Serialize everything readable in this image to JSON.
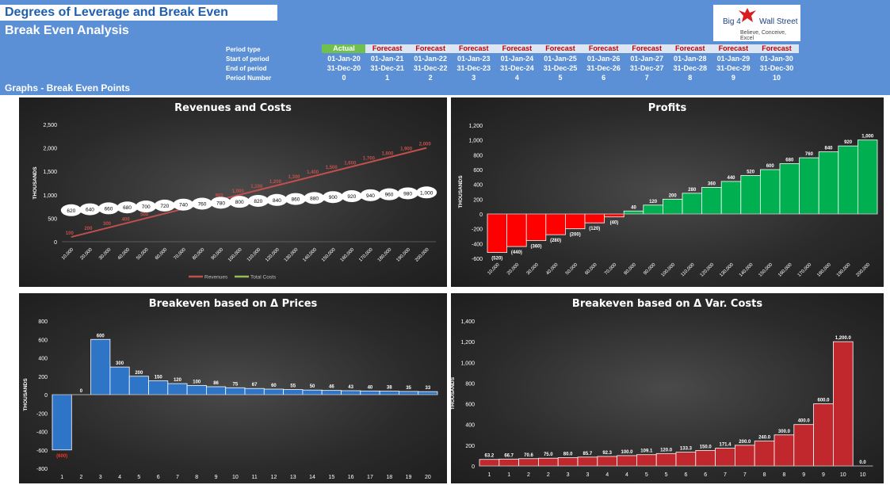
{
  "header": {
    "title": "Degrees of Leverage and Break Even",
    "subtitle": "Break Even Analysis",
    "section": "Graphs - Break Even Points",
    "logo_line1": "Big 4",
    "logo_line2": "Wall Street",
    "logo_tagline": "Believe, Conceive, Excel",
    "logo_icon": "eagle-icon"
  },
  "periods": {
    "labels": [
      "Period type",
      "Start of period",
      "End of period",
      "Period Number"
    ],
    "types": [
      "Actual",
      "Forecast",
      "Forecast",
      "Forecast",
      "Forecast",
      "Forecast",
      "Forecast",
      "Forecast",
      "Forecast",
      "Forecast",
      "Forecast"
    ],
    "starts": [
      "01-Jan-20",
      "01-Jan-21",
      "01-Jan-22",
      "01-Jan-23",
      "01-Jan-24",
      "01-Jan-25",
      "01-Jan-26",
      "01-Jan-27",
      "01-Jan-28",
      "01-Jan-29",
      "01-Jan-30"
    ],
    "ends": [
      "31-Dec-20",
      "31-Dec-21",
      "31-Dec-22",
      "31-Dec-23",
      "31-Dec-24",
      "31-Dec-25",
      "31-Dec-26",
      "31-Dec-27",
      "31-Dec-28",
      "31-Dec-29",
      "31-Dec-30"
    ],
    "numbers": [
      "0",
      "1",
      "2",
      "3",
      "4",
      "5",
      "6",
      "7",
      "8",
      "9",
      "10"
    ]
  },
  "colors": {
    "header_blue": "#5b8fd6",
    "actual_green": "#70c050",
    "revenue_red": "#c0504d",
    "cost_green": "#9bbb59",
    "loss_red": "#ff0000",
    "profit_green": "#00b050",
    "bar_blue": "#2e75c8",
    "bar_red": "#c0282d"
  },
  "chart_data": [
    {
      "type": "line",
      "title": "Revenues and Costs",
      "ylabel": "THOUSANDS",
      "ylim": [
        0,
        2500
      ],
      "yticks": [
        "0",
        "500",
        "1,000",
        "1,500",
        "2,000",
        "2,500"
      ],
      "categories": [
        "10,000",
        "20,000",
        "30,000",
        "40,000",
        "50,000",
        "60,000",
        "70,000",
        "80,000",
        "90,000",
        "100,000",
        "110,000",
        "120,000",
        "130,000",
        "140,000",
        "150,000",
        "160,000",
        "170,000",
        "180,000",
        "190,000",
        "200,000"
      ],
      "series": [
        {
          "name": "Revenues",
          "values": [
            100,
            200,
            300,
            400,
            500,
            600,
            700,
            800,
            900,
            1000,
            1100,
            1200,
            1300,
            1400,
            1500,
            1600,
            1700,
            1800,
            1900,
            2000
          ],
          "labels": [
            "100",
            "200",
            "300",
            "400",
            "500",
            "600",
            "700",
            "800",
            "900",
            "1,000",
            "1,100",
            "1,200",
            "1,300",
            "1,400",
            "1,500",
            "1,600",
            "1,700",
            "1,800",
            "1,900",
            "2,000"
          ]
        },
        {
          "name": "Total Costs",
          "values": [
            620,
            640,
            660,
            680,
            700,
            720,
            740,
            760,
            780,
            800,
            820,
            840,
            860,
            880,
            900,
            920,
            940,
            960,
            980,
            1000
          ],
          "labels": [
            "620",
            "640",
            "660",
            "680",
            "700",
            "720",
            "740",
            "760",
            "780",
            "800",
            "820",
            "840",
            "860",
            "880",
            "900",
            "920",
            "940",
            "960",
            "980",
            "1,000"
          ]
        }
      ],
      "legend": "bottom"
    },
    {
      "type": "bar",
      "title": "Profits",
      "ylabel": "THOUSANDS",
      "ylim": [
        -600,
        1200
      ],
      "yticks": [
        "-600",
        "-400",
        "-200",
        "0",
        "200",
        "400",
        "600",
        "800",
        "1,000",
        "1,200"
      ],
      "categories": [
        "10,000",
        "20,000",
        "30,000",
        "40,000",
        "50,000",
        "60,000",
        "70,000",
        "80,000",
        "90,000",
        "100,000",
        "110,000",
        "120,000",
        "130,000",
        "140,000",
        "150,000",
        "160,000",
        "170,000",
        "180,000",
        "190,000",
        "200,000"
      ],
      "values": [
        -520,
        -440,
        -360,
        -280,
        -200,
        -120,
        -40,
        40,
        120,
        200,
        280,
        360,
        440,
        520,
        600,
        680,
        760,
        840,
        920,
        1000
      ],
      "labels": [
        "(520)",
        "(440)",
        "(360)",
        "(280)",
        "(200)",
        "(120)",
        "(40)",
        "40",
        "120",
        "200",
        "280",
        "360",
        "440",
        "520",
        "600",
        "680",
        "760",
        "840",
        "920",
        "1,000"
      ]
    },
    {
      "type": "bar",
      "title": "Breakeven based on Δ Prices",
      "ylabel": "THOUSANDS",
      "ylim": [
        -800,
        800
      ],
      "yticks": [
        "-800",
        "-600",
        "-400",
        "-200",
        "0",
        "200",
        "400",
        "600",
        "800"
      ],
      "categories": [
        "1",
        "2",
        "3",
        "4",
        "5",
        "6",
        "7",
        "8",
        "9",
        "10",
        "11",
        "12",
        "13",
        "14",
        "15",
        "16",
        "17",
        "18",
        "19",
        "20"
      ],
      "values": [
        -600,
        0,
        600,
        300,
        200,
        150,
        120,
        100,
        86,
        75,
        67,
        60,
        55,
        50,
        46,
        43,
        40,
        38,
        35,
        33
      ],
      "labels": [
        "(600)",
        "0",
        "600",
        "300",
        "200",
        "150",
        "120",
        "100",
        "86",
        "75",
        "67",
        "60",
        "55",
        "50",
        "46",
        "43",
        "40",
        "38",
        "35",
        "33"
      ]
    },
    {
      "type": "bar",
      "title": "Breakeven based on Δ Var. Costs",
      "ylabel": "THOUSANDS",
      "ylim": [
        0,
        1400
      ],
      "yticks": [
        "0",
        "200",
        "400",
        "600",
        "800",
        "1,000",
        "1,200",
        "1,400"
      ],
      "categories": [
        "1",
        "1",
        "2",
        "2",
        "3",
        "3",
        "4",
        "4",
        "5",
        "5",
        "6",
        "6",
        "7",
        "7",
        "8",
        "8",
        "9",
        "9",
        "10",
        "10"
      ],
      "values": [
        63.2,
        66.7,
        70.6,
        75.0,
        80.0,
        85.7,
        92.3,
        100.0,
        109.1,
        120.0,
        133.3,
        150.0,
        171.4,
        200.0,
        240.0,
        300.0,
        400.0,
        600.0,
        1200.0,
        0.0
      ],
      "labels": [
        "63.2",
        "66.7",
        "70.6",
        "75.0",
        "80.0",
        "85.7",
        "92.3",
        "100.0",
        "109.1",
        "120.0",
        "133.3",
        "150.0",
        "171.4",
        "200.0",
        "240.0",
        "300.0",
        "400.0",
        "600.0",
        "1,200.0",
        "0.0"
      ]
    }
  ]
}
